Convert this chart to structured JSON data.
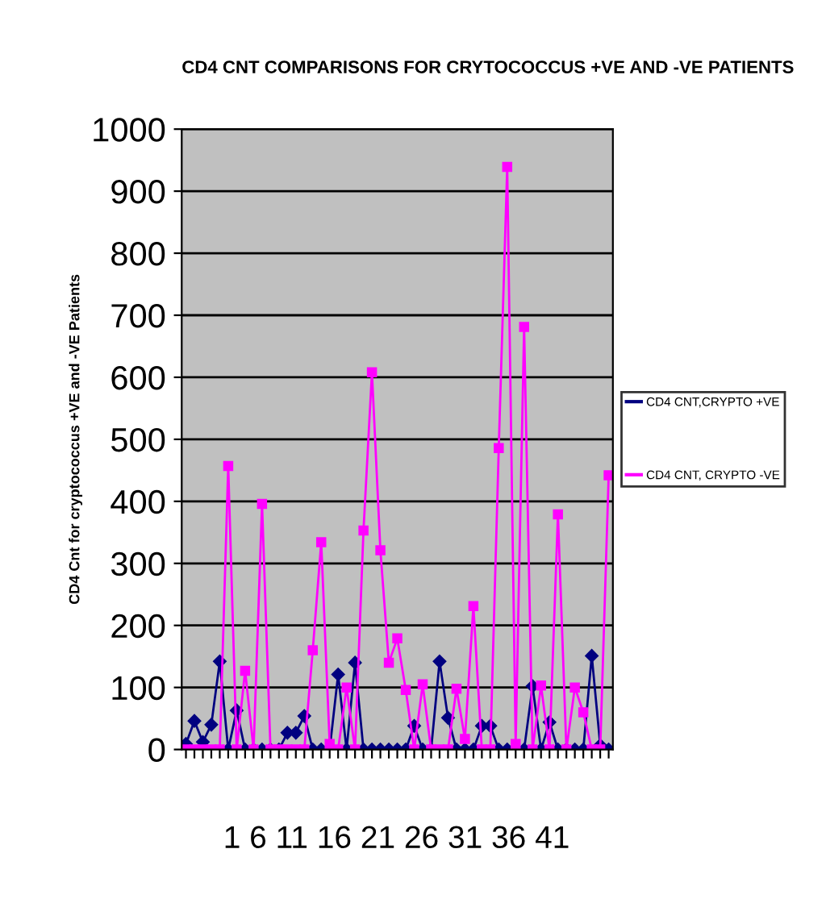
{
  "chart_data": {
    "type": "line",
    "title": "CD4 CNT COMPARISONS FOR CRYTOCOCCUS +VE AND -VE PATIENTS",
    "ylabel": "CD4 Cnt for cryptococcus +VE and -VE Patients",
    "categories": [
      null,
      null,
      null,
      null,
      null,
      null,
      null,
      null,
      null,
      null,
      null,
      null,
      null,
      null,
      null,
      null,
      null,
      null,
      null,
      null,
      null,
      null,
      null,
      null,
      null,
      null,
      null,
      null,
      null,
      null,
      null,
      null,
      null,
      null,
      null,
      null,
      null,
      null,
      null,
      null,
      null,
      null,
      null,
      null,
      null,
      null,
      null,
      null,
      null,
      null,
      null
    ],
    "series": [
      {
        "name": "CD4 CNT,CRYPTO +VE",
        "color": "#000080",
        "marker": "diamond",
        "values": [
          9,
          46,
          12,
          40,
          142,
          0,
          63,
          0,
          0,
          0,
          0,
          0,
          27,
          27,
          54,
          0,
          0,
          0,
          121,
          0,
          140,
          0,
          0,
          0,
          0,
          0,
          0,
          38,
          0,
          0,
          142,
          51,
          0,
          0,
          0,
          38,
          38,
          0,
          0,
          0,
          0,
          102,
          0,
          44,
          0,
          0,
          0,
          0,
          151,
          7,
          0
        ]
      },
      {
        "name": "CD4 CNT, CRYPTO -VE",
        "color": "#ff00ff",
        "marker": "square",
        "values": [
          0,
          0,
          0,
          0,
          0,
          457,
          0,
          127,
          0,
          396,
          0,
          0,
          0,
          0,
          0,
          160,
          334,
          9,
          0,
          100,
          0,
          353,
          608,
          321,
          140,
          179,
          96,
          0,
          105,
          0,
          0,
          0,
          98,
          17,
          231,
          0,
          0,
          486,
          939,
          9,
          681,
          0,
          103,
          0,
          379,
          0,
          100,
          60,
          0,
          0,
          442
        ]
      }
    ],
    "ylim": [
      0,
      1000
    ],
    "yticks": [
      0,
      100,
      200,
      300,
      400,
      500,
      600,
      700,
      800,
      900,
      1000
    ],
    "grid": "y",
    "legend": "right",
    "annotations": [
      "1 6 11 16 21 26 31 36 41"
    ]
  }
}
